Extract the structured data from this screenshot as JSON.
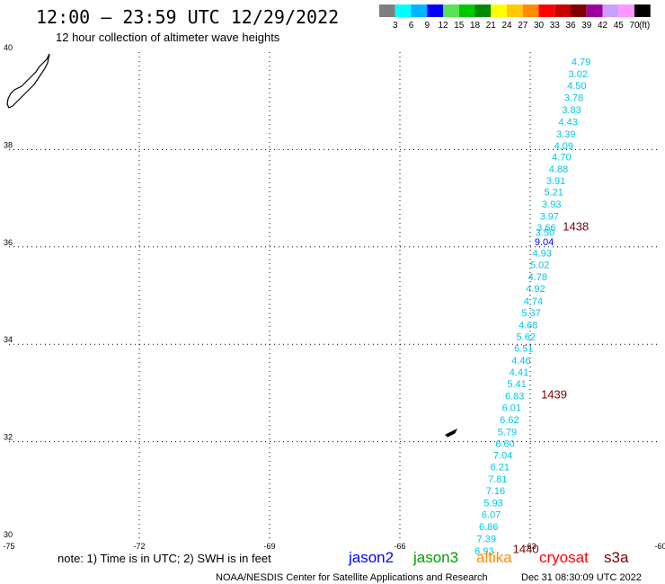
{
  "header": {
    "title": "12:00 – 23:59 UTC 12/29/2022",
    "subtitle": "12 hour collection of altimeter wave heights"
  },
  "legend": {
    "unit": "(ft)",
    "entries": [
      {
        "label": "3",
        "color": "#7f7f7f"
      },
      {
        "label": "6",
        "color": "#00ffff"
      },
      {
        "label": "9",
        "color": "#00b4ff"
      },
      {
        "label": "12",
        "color": "#0000ff"
      },
      {
        "label": "15",
        "color": "#5ae25a"
      },
      {
        "label": "18",
        "color": "#00c800"
      },
      {
        "label": "21",
        "color": "#008c00"
      },
      {
        "label": "24",
        "color": "#ffff00"
      },
      {
        "label": "27",
        "color": "#ffc800"
      },
      {
        "label": "30",
        "color": "#ff8c00"
      },
      {
        "label": "33",
        "color": "#ff0000"
      },
      {
        "label": "36",
        "color": "#c80000"
      },
      {
        "label": "39",
        "color": "#7f0000"
      },
      {
        "label": "42",
        "color": "#a000a0"
      },
      {
        "label": "45",
        "color": "#c8a0ff"
      },
      {
        "label": "70",
        "color": "#ff96ff"
      },
      {
        "label": "",
        "color": "#000000"
      }
    ]
  },
  "footer": {
    "note": "note:  1) Time is in UTC;  2) SWH is in feet",
    "satellites": [
      {
        "name": "jason2",
        "color": "#0000ff"
      },
      {
        "name": "jason3",
        "color": "#00a000"
      },
      {
        "name": "altika",
        "color": "#ff8c00"
      },
      {
        "name": "cryosat",
        "color": "#ff0000"
      },
      {
        "name": "s3a",
        "color": "#7f0000"
      }
    ],
    "credit": "NOAA/NESDIS Center for Satellite Applications and Research",
    "timestamp": "Dec 31 08:30:09 UTC 2022"
  },
  "chart_data": {
    "type": "scatter",
    "xlim": [
      -75,
      -60
    ],
    "ylim": [
      30,
      40
    ],
    "x_ticks": [
      "-75",
      "-72",
      "-69",
      "-66",
      "-63",
      "-60"
    ],
    "y_ticks": [
      "30",
      "32",
      "34",
      "36",
      "38",
      "40"
    ],
    "grid": true,
    "colors": {
      "swh": "#00c8e6",
      "highlight": "#0000ff",
      "time": "#7f0000"
    },
    "swh_points": [
      {
        "lon": -62.05,
        "lat": 39.73,
        "v": "4.79"
      },
      {
        "lon": -62.12,
        "lat": 39.48,
        "v": "3.02"
      },
      {
        "lon": -62.15,
        "lat": 39.24,
        "v": "4.50"
      },
      {
        "lon": -62.22,
        "lat": 38.99,
        "v": "3.78"
      },
      {
        "lon": -62.27,
        "lat": 38.75,
        "v": "3.83"
      },
      {
        "lon": -62.35,
        "lat": 38.5,
        "v": "4.43"
      },
      {
        "lon": -62.4,
        "lat": 38.25,
        "v": "3.39"
      },
      {
        "lon": -62.45,
        "lat": 38.01,
        "v": "4.09"
      },
      {
        "lon": -62.5,
        "lat": 37.78,
        "v": "4.70"
      },
      {
        "lon": -62.57,
        "lat": 37.53,
        "v": "4.88"
      },
      {
        "lon": -62.63,
        "lat": 37.29,
        "v": "3.91"
      },
      {
        "lon": -62.68,
        "lat": 37.06,
        "v": "5.21"
      },
      {
        "lon": -62.73,
        "lat": 36.81,
        "v": "3.93"
      },
      {
        "lon": -62.78,
        "lat": 36.56,
        "v": "3.97"
      },
      {
        "lon": -62.85,
        "lat": 36.33,
        "v": "3.66"
      },
      {
        "lon": -62.88,
        "lat": 36.23,
        "v": "3.50"
      },
      {
        "lon": -62.9,
        "lat": 36.03,
        "v": "9.04",
        "highlight": true
      },
      {
        "lon": -62.95,
        "lat": 35.8,
        "v": "4.93"
      },
      {
        "lon": -63.0,
        "lat": 35.56,
        "v": "5.02"
      },
      {
        "lon": -63.05,
        "lat": 35.31,
        "v": "4.78"
      },
      {
        "lon": -63.1,
        "lat": 35.07,
        "v": "4.92"
      },
      {
        "lon": -63.15,
        "lat": 34.82,
        "v": "4.74"
      },
      {
        "lon": -63.2,
        "lat": 34.58,
        "v": "5.37"
      },
      {
        "lon": -63.27,
        "lat": 34.33,
        "v": "4.68"
      },
      {
        "lon": -63.32,
        "lat": 34.09,
        "v": "5.62"
      },
      {
        "lon": -63.37,
        "lat": 33.85,
        "v": "6.51"
      },
      {
        "lon": -63.43,
        "lat": 33.6,
        "v": "4.46"
      },
      {
        "lon": -63.48,
        "lat": 33.36,
        "v": "4.41"
      },
      {
        "lon": -63.53,
        "lat": 33.12,
        "v": "5.41"
      },
      {
        "lon": -63.58,
        "lat": 32.87,
        "v": "6.83"
      },
      {
        "lon": -63.65,
        "lat": 32.63,
        "v": "6.01"
      },
      {
        "lon": -63.7,
        "lat": 32.38,
        "v": "6.62"
      },
      {
        "lon": -63.75,
        "lat": 32.13,
        "v": "5.79"
      },
      {
        "lon": -63.8,
        "lat": 31.89,
        "v": "6.60"
      },
      {
        "lon": -63.85,
        "lat": 31.65,
        "v": "7.04"
      },
      {
        "lon": -63.92,
        "lat": 31.41,
        "v": "6.21"
      },
      {
        "lon": -63.97,
        "lat": 31.16,
        "v": "7.81"
      },
      {
        "lon": -64.02,
        "lat": 30.92,
        "v": "7.16"
      },
      {
        "lon": -64.07,
        "lat": 30.67,
        "v": "5.93"
      },
      {
        "lon": -64.12,
        "lat": 30.43,
        "v": "6.07"
      },
      {
        "lon": -64.18,
        "lat": 30.18,
        "v": "6.86"
      },
      {
        "lon": -64.23,
        "lat": 29.94,
        "v": "7.39"
      },
      {
        "lon": -64.28,
        "lat": 29.69,
        "v": "6.93"
      }
    ],
    "time_labels": [
      {
        "lon": -62.25,
        "lat": 36.34,
        "v": "1438"
      },
      {
        "lon": -62.75,
        "lat": 32.89,
        "v": "1439"
      },
      {
        "lon": -63.4,
        "lat": 29.71,
        "v": "1440"
      }
    ]
  }
}
